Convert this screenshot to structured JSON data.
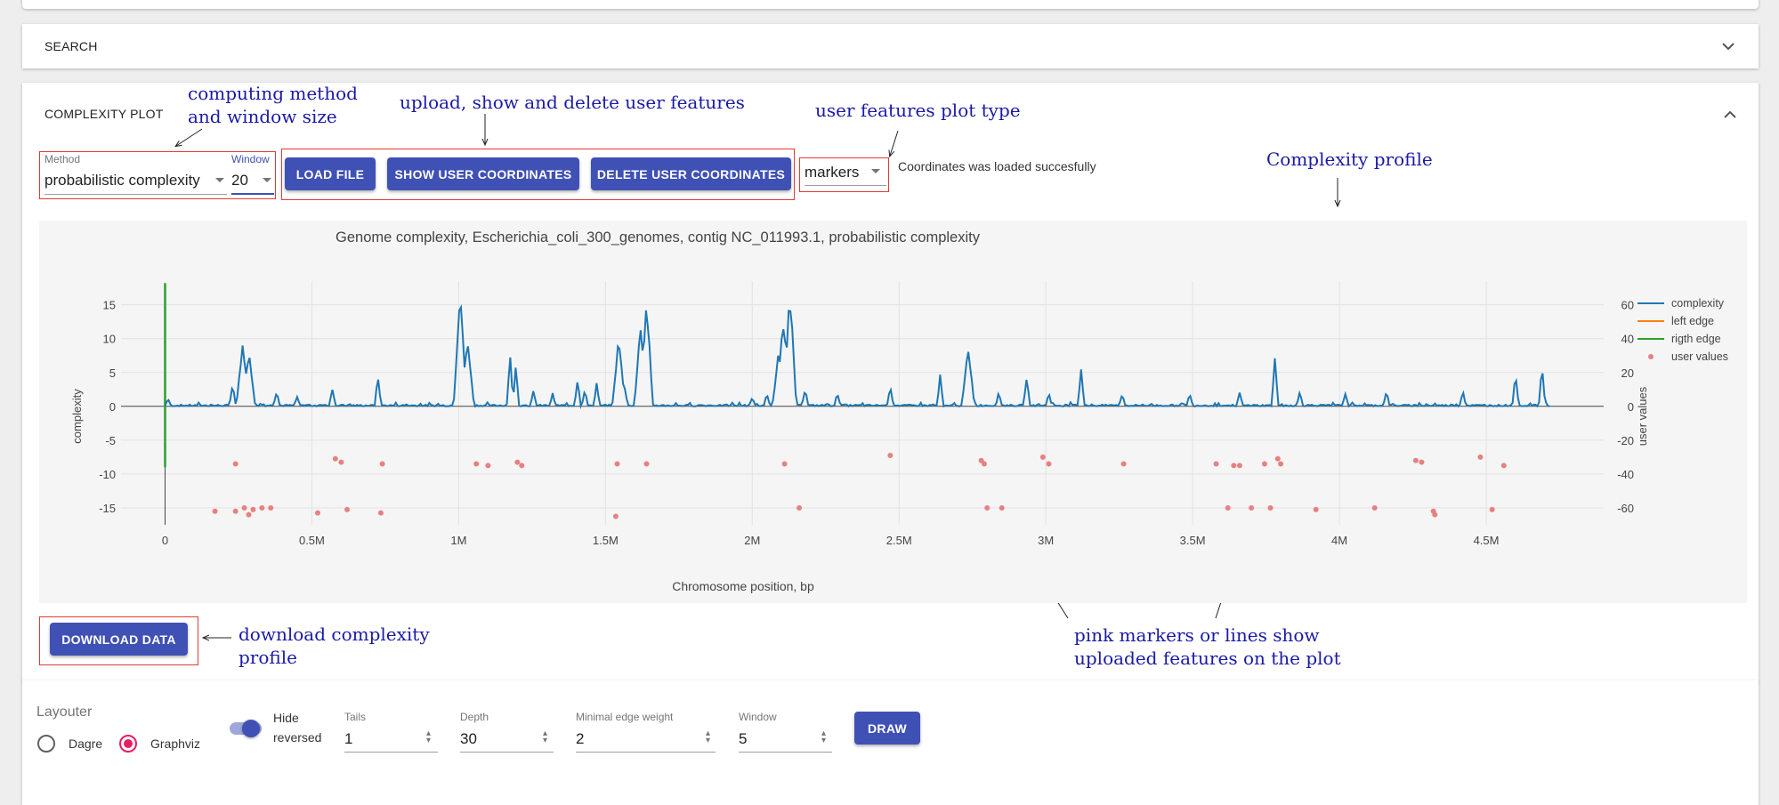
{
  "panels": {
    "search_title": "SEARCH",
    "complexity_title": "COMPLEXITY PLOT"
  },
  "controls": {
    "method_label": "Method",
    "method_value": "probabilistic complexity",
    "window_label": "Window",
    "window_value": "20",
    "load_file": "LOAD FILE",
    "show_coords": "SHOW USER COORDINATES",
    "delete_coords": "DELETE USER COORDINATES",
    "plot_type_value": "markers",
    "status": "Coordinates was loaded succesfully",
    "download": "DOWNLOAD DATA"
  },
  "annotations": {
    "method_window_1": "computing method",
    "method_window_2": "and window size",
    "user_features": "upload, show and delete user features",
    "plot_type": "user features plot type",
    "profile": "Complexity profile",
    "download_1": "download complexity",
    "download_2": "profile",
    "markers_1": "pink markers or lines show",
    "markers_2": "uploaded features on the plot"
  },
  "graph_settings": {
    "layouter_label": "Layouter",
    "dagre_label": "Dagre",
    "graphviz_label": "Graphviz",
    "hide_reversed_1": "Hide",
    "hide_reversed_2": "reversed",
    "tails_label": "Tails",
    "tails_value": "1",
    "depth_label": "Depth",
    "depth_value": "30",
    "min_edge_label": "Minimal edge weight",
    "min_edge_value": "2",
    "window_label": "Window",
    "window_value": "5",
    "draw": "DRAW"
  },
  "colors": {
    "primary": "#3f51b5",
    "annotation": "#1a1aa8",
    "highlight_box": "#e53935",
    "complexity_line": "#1f77b4",
    "left_edge": "#ff7f0e",
    "right_edge": "#2ca02c",
    "user_values": "#e88080"
  },
  "chart_data": {
    "type": "line",
    "title": "Genome complexity, Escherichia_coli_300_genomes, contig NC_011993.1, probabilistic complexity",
    "xlabel": "Chromosome position, bp",
    "ylabel": "complexity",
    "y2label": "user values",
    "xlim": [
      -150000,
      4900000
    ],
    "ylim": [
      -17.5,
      18.5
    ],
    "y2lim": [
      -70,
      74
    ],
    "x_ticks": [
      0,
      500000,
      1000000,
      1500000,
      2000000,
      2500000,
      3000000,
      3500000,
      4000000,
      4500000
    ],
    "x_tick_labels": [
      "0",
      "0.5M",
      "1M",
      "1.5M",
      "2M",
      "2.5M",
      "3M",
      "3.5M",
      "4M",
      "4.5M"
    ],
    "y_ticks": [
      -15,
      -10,
      -5,
      0,
      5,
      10,
      15
    ],
    "y2_ticks": [
      -60,
      -40,
      -20,
      0,
      20,
      40,
      60
    ],
    "grid": true,
    "legend_placement": "right",
    "series": [
      {
        "name": "complexity",
        "peaks": [
          {
            "x": 10000,
            "y": 1.2
          },
          {
            "x": 230000,
            "y": 3.5
          },
          {
            "x": 265000,
            "y": 9.7
          },
          {
            "x": 285000,
            "y": 8.5
          },
          {
            "x": 380000,
            "y": 2.4
          },
          {
            "x": 450000,
            "y": 1.5
          },
          {
            "x": 570000,
            "y": 2.8
          },
          {
            "x": 725000,
            "y": 4.8
          },
          {
            "x": 1005000,
            "y": 18.2
          },
          {
            "x": 1030000,
            "y": 11
          },
          {
            "x": 1175000,
            "y": 8.0
          },
          {
            "x": 1195000,
            "y": 6.5
          },
          {
            "x": 1255000,
            "y": 2.5
          },
          {
            "x": 1320000,
            "y": 2.0
          },
          {
            "x": 1405000,
            "y": 4.2
          },
          {
            "x": 1430000,
            "y": 2.6
          },
          {
            "x": 1470000,
            "y": 3.5
          },
          {
            "x": 1545000,
            "y": 10.5
          },
          {
            "x": 1565000,
            "y": 3.2
          },
          {
            "x": 1610000,
            "y": 4.5
          },
          {
            "x": 1620000,
            "y": 12.3
          },
          {
            "x": 1640000,
            "y": 16.3
          },
          {
            "x": 2000000,
            "y": 1.5
          },
          {
            "x": 2050000,
            "y": 2.0
          },
          {
            "x": 2090000,
            "y": 8.3
          },
          {
            "x": 2105000,
            "y": 14.0
          },
          {
            "x": 2128000,
            "y": 18.0
          },
          {
            "x": 2180000,
            "y": 2.8
          },
          {
            "x": 2290000,
            "y": 2.1
          },
          {
            "x": 2470000,
            "y": 3.3
          },
          {
            "x": 2640000,
            "y": 4.7
          },
          {
            "x": 2735000,
            "y": 9.0
          },
          {
            "x": 2840000,
            "y": 2.2
          },
          {
            "x": 2935000,
            "y": 5.0
          },
          {
            "x": 3010000,
            "y": 2.1
          },
          {
            "x": 3120000,
            "y": 6.0
          },
          {
            "x": 3260000,
            "y": 2.0
          },
          {
            "x": 3490000,
            "y": 2.0
          },
          {
            "x": 3660000,
            "y": 2.2
          },
          {
            "x": 3780000,
            "y": 7.7
          },
          {
            "x": 3865000,
            "y": 2.3
          },
          {
            "x": 4020000,
            "y": 2.1
          },
          {
            "x": 4160000,
            "y": 2.5
          },
          {
            "x": 4420000,
            "y": 2.4
          },
          {
            "x": 4600000,
            "y": 5.1
          },
          {
            "x": 4690000,
            "y": 6.2
          }
        ]
      },
      {
        "name": "left edge",
        "x": [
          0,
          0
        ],
        "y": [
          0,
          0
        ]
      },
      {
        "name": "rigth edge",
        "x": [
          0,
          0
        ],
        "y": [
          -9,
          18.2
        ]
      },
      {
        "name": "user values",
        "points": [
          {
            "x": 170000,
            "y": -62
          },
          {
            "x": 240000,
            "y": -62
          },
          {
            "x": 270000,
            "y": -60
          },
          {
            "x": 285000,
            "y": -64
          },
          {
            "x": 300000,
            "y": -61
          },
          {
            "x": 330000,
            "y": -60
          },
          {
            "x": 360000,
            "y": -60
          },
          {
            "x": 240000,
            "y": -34
          },
          {
            "x": 520000,
            "y": -63
          },
          {
            "x": 580000,
            "y": -31
          },
          {
            "x": 600000,
            "y": -33
          },
          {
            "x": 620000,
            "y": -61
          },
          {
            "x": 735000,
            "y": -63
          },
          {
            "x": 740000,
            "y": -34
          },
          {
            "x": 1060000,
            "y": -34
          },
          {
            "x": 1100000,
            "y": -35
          },
          {
            "x": 1200000,
            "y": -33
          },
          {
            "x": 1215000,
            "y": -35
          },
          {
            "x": 1535000,
            "y": -65
          },
          {
            "x": 1540000,
            "y": -34
          },
          {
            "x": 1640000,
            "y": -34
          },
          {
            "x": 2110000,
            "y": -34
          },
          {
            "x": 2160000,
            "y": -60
          },
          {
            "x": 2470000,
            "y": -29
          },
          {
            "x": 2780000,
            "y": -32
          },
          {
            "x": 2790000,
            "y": -34
          },
          {
            "x": 2800000,
            "y": -60
          },
          {
            "x": 2850000,
            "y": -60
          },
          {
            "x": 2990000,
            "y": -30
          },
          {
            "x": 3010000,
            "y": -34
          },
          {
            "x": 3265000,
            "y": -34
          },
          {
            "x": 3580000,
            "y": -34
          },
          {
            "x": 3620000,
            "y": -60
          },
          {
            "x": 3640000,
            "y": -35
          },
          {
            "x": 3660000,
            "y": -35
          },
          {
            "x": 3700000,
            "y": -60
          },
          {
            "x": 3745000,
            "y": -34
          },
          {
            "x": 3765000,
            "y": -60
          },
          {
            "x": 3790000,
            "y": -31
          },
          {
            "x": 3800000,
            "y": -34
          },
          {
            "x": 3920000,
            "y": -61
          },
          {
            "x": 4120000,
            "y": -60
          },
          {
            "x": 4260000,
            "y": -32
          },
          {
            "x": 4280000,
            "y": -33
          },
          {
            "x": 4320000,
            "y": -62
          },
          {
            "x": 4325000,
            "y": -64
          },
          {
            "x": 4480000,
            "y": -30
          },
          {
            "x": 4520000,
            "y": -61
          },
          {
            "x": 4560000,
            "y": -35
          }
        ]
      }
    ]
  }
}
